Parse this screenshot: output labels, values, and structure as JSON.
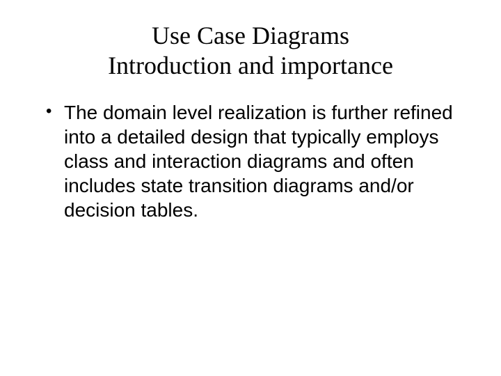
{
  "slide": {
    "title_line1": "Use Case Diagrams",
    "title_line2": "Introduction and importance",
    "bullets": [
      "The domain level realization is further refined into a detailed design that typically employs class and interaction diagrams and often includes state transition diagrams and/or decision tables."
    ],
    "styling": {
      "background_color": "#ffffff",
      "title_font": "Times New Roman",
      "title_fontsize": 36,
      "title_color": "#000000",
      "body_font": "Arial",
      "body_fontsize": 28,
      "body_color": "#000000",
      "bullet_char": "•"
    }
  }
}
